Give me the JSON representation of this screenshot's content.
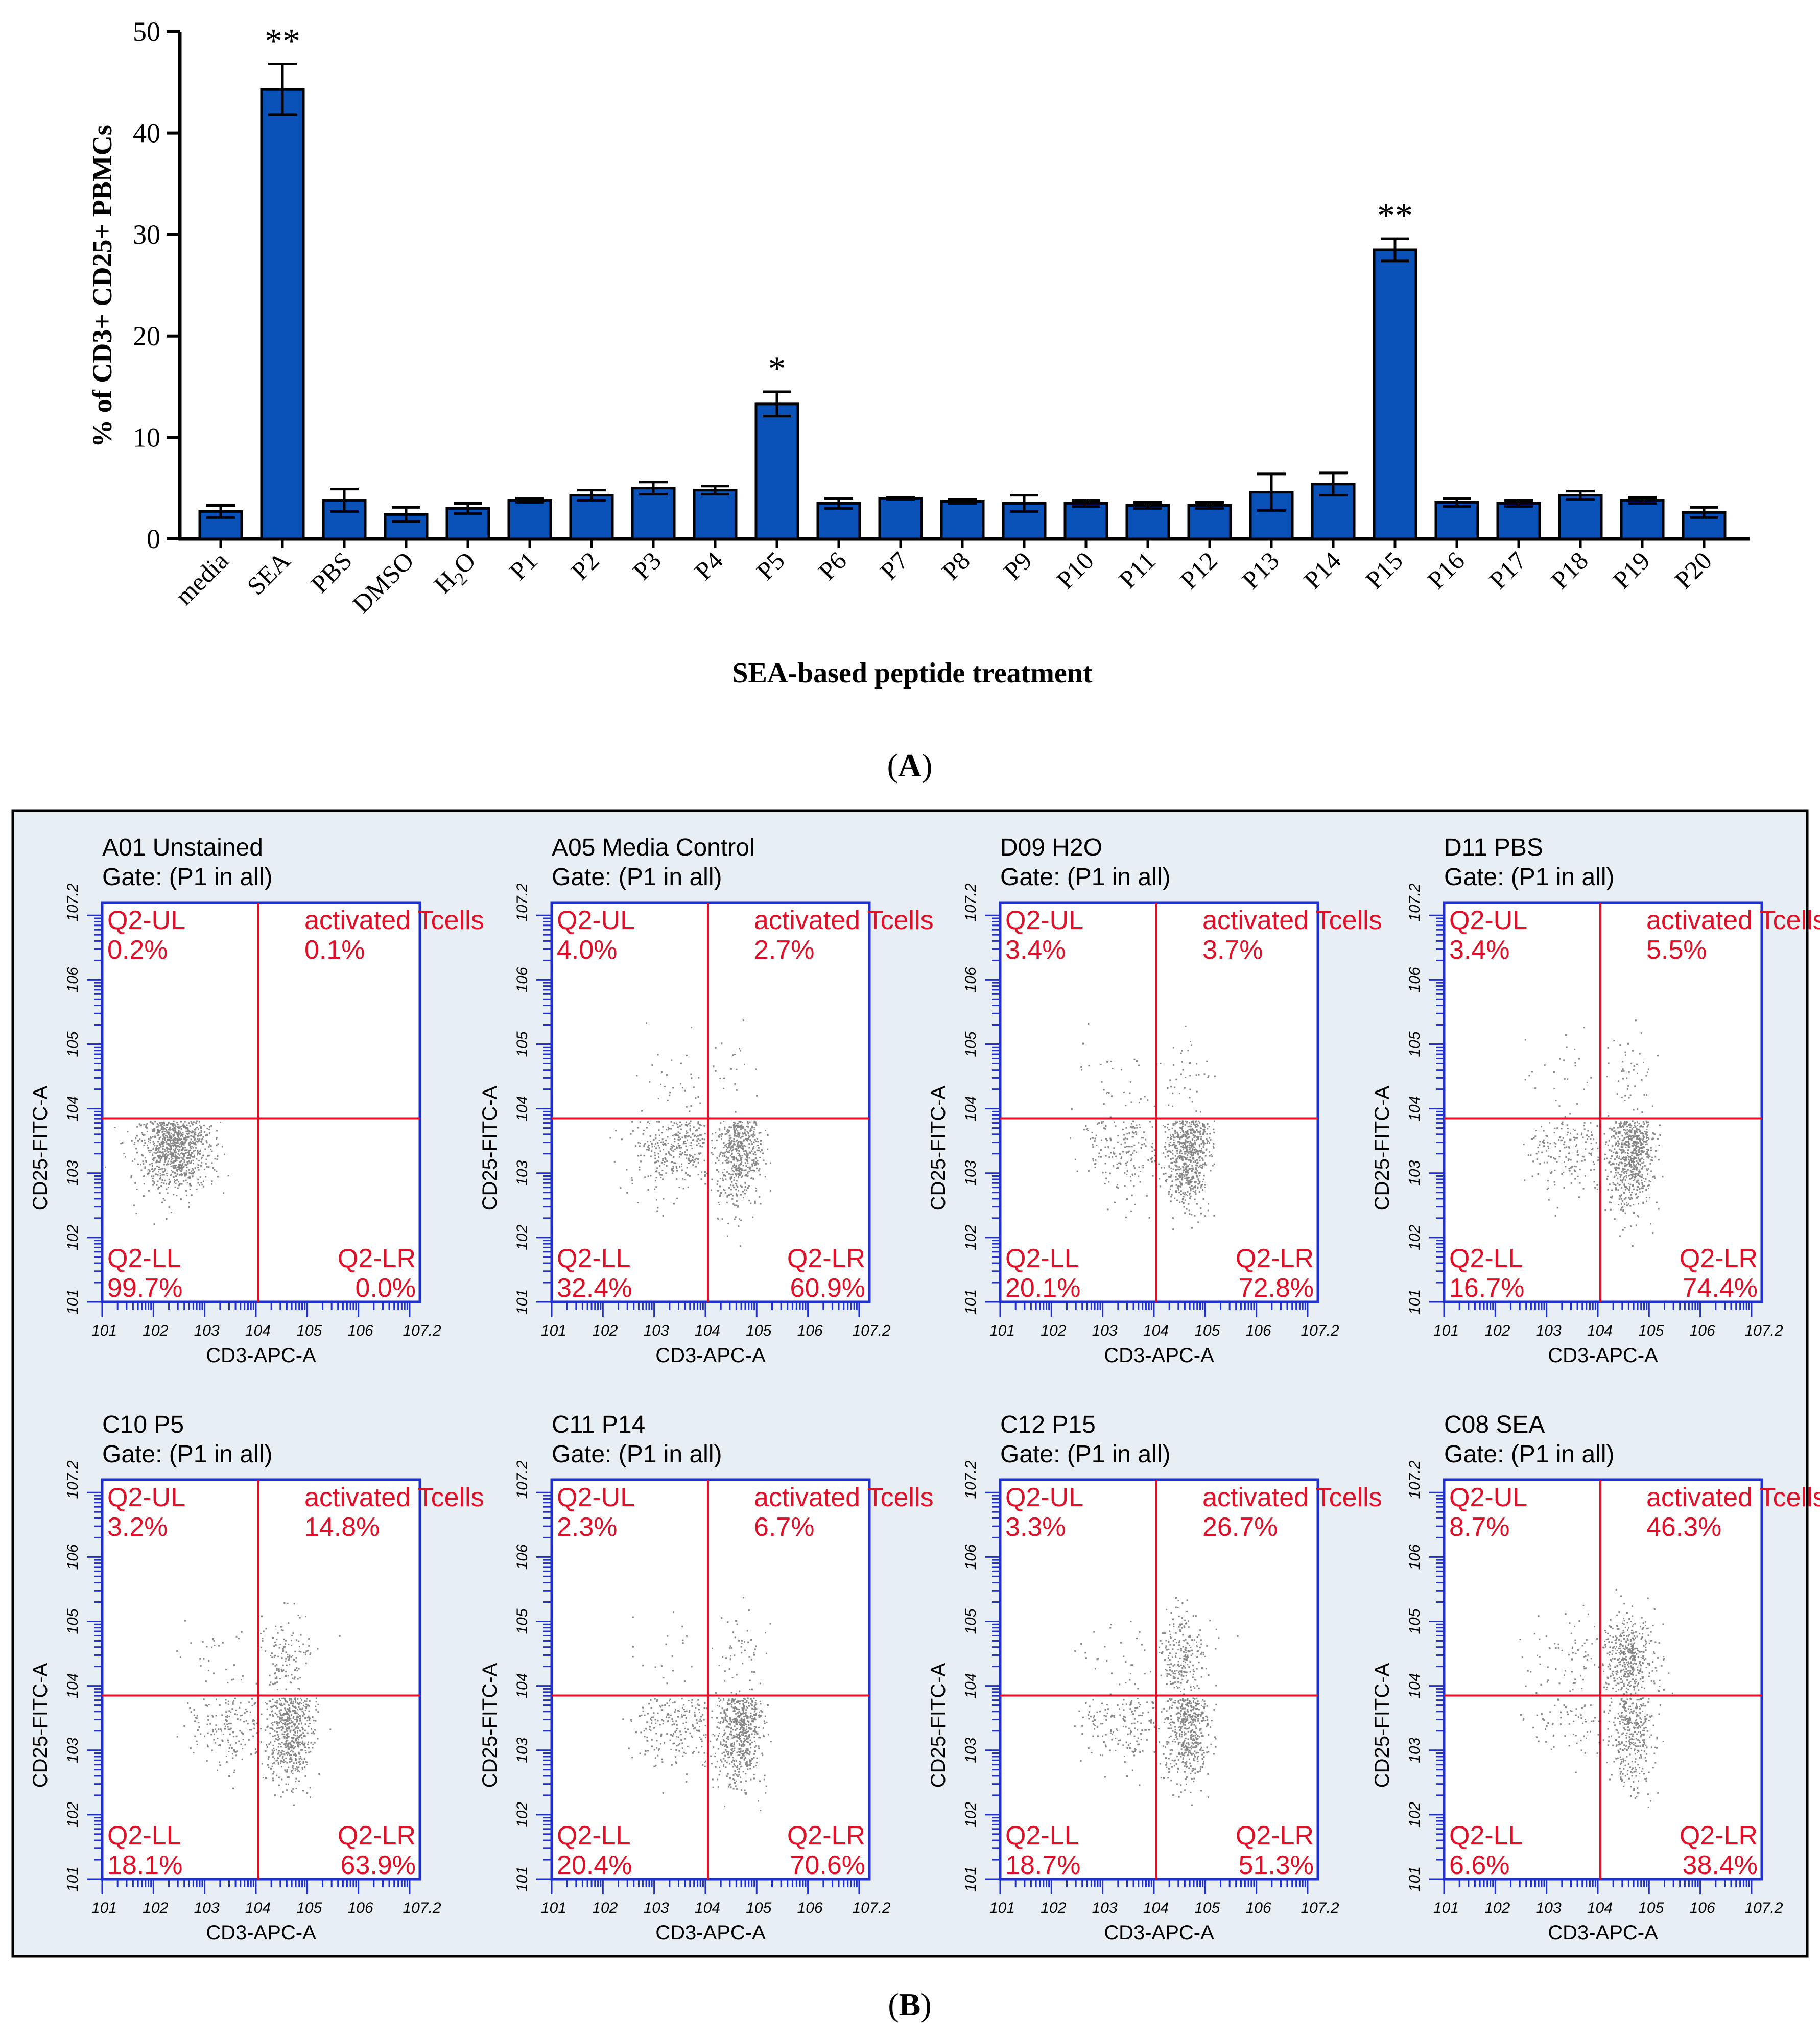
{
  "panel_a": {
    "label": "A",
    "chart_data": {
      "type": "bar",
      "title": "",
      "xlabel": "SEA-based peptide treatment",
      "ylabel": "% of CD3+ CD25+ PBMCs",
      "ylim": [
        0,
        50
      ],
      "yticks": [
        0,
        10,
        20,
        30,
        40,
        50
      ],
      "categories": [
        "media",
        "SEA",
        "PBS",
        "DMSO",
        "H2O",
        "P1",
        "P2",
        "P3",
        "P4",
        "P5",
        "P6",
        "P7",
        "P8",
        "P9",
        "P10",
        "P11",
        "P12",
        "P13",
        "P14",
        "P15",
        "P16",
        "P17",
        "P18",
        "P19",
        "P20"
      ],
      "values": [
        2.7,
        44.3,
        3.8,
        2.4,
        3.0,
        3.8,
        4.3,
        5.0,
        4.8,
        13.3,
        3.5,
        4.0,
        3.7,
        3.5,
        3.5,
        3.3,
        3.3,
        4.6,
        5.4,
        28.5,
        3.6,
        3.5,
        4.3,
        3.8,
        2.6
      ],
      "errors": [
        0.6,
        2.5,
        1.1,
        0.7,
        0.5,
        0.2,
        0.5,
        0.6,
        0.4,
        1.2,
        0.5,
        0.1,
        0.2,
        0.8,
        0.3,
        0.3,
        0.3,
        1.8,
        1.1,
        1.1,
        0.4,
        0.3,
        0.4,
        0.3,
        0.5
      ],
      "significance": [
        "",
        "**",
        "",
        "",
        "",
        "",
        "",
        "",
        "",
        "*",
        "",
        "",
        "",
        "",
        "",
        "",
        "",
        "",
        "",
        "**",
        "",
        "",
        "",
        "",
        ""
      ],
      "bar_color": "#0a52b8"
    }
  },
  "panel_b": {
    "label": "B",
    "x_axis_label": "CD3-APC-A",
    "y_axis_label": "CD25-FITC-A",
    "decade_labels": [
      "1",
      "2",
      "3",
      "4",
      "5",
      "6",
      "7.2"
    ],
    "quadrant_names": {
      "ul": "Q2-UL",
      "ur": "activated Tcells",
      "ll": "Q2-LL",
      "lr": "Q2-LR"
    },
    "colors": {
      "frame": "#1f2fd0",
      "gate": "#e01028",
      "text_red": "#e01028",
      "panel_bg": "#e8eff4"
    },
    "plots": [
      {
        "title": "A01 Unstained",
        "gate": "Gate: (P1 in all)",
        "ul": "0.2%",
        "ur": "0.1%",
        "ll": "99.7%",
        "lr": "0.0%"
      },
      {
        "title": "A05 Media Control",
        "gate": "Gate: (P1 in all)",
        "ul": "4.0%",
        "ur": "2.7%",
        "ll": "32.4%",
        "lr": "60.9%"
      },
      {
        "title": "D09 H2O",
        "gate": "Gate: (P1 in all)",
        "ul": "3.4%",
        "ur": "3.7%",
        "ll": "20.1%",
        "lr": "72.8%"
      },
      {
        "title": "D11 PBS",
        "gate": "Gate: (P1 in all)",
        "ul": "3.4%",
        "ur": "5.5%",
        "ll": "16.7%",
        "lr": "74.4%"
      },
      {
        "title": "C10 P5",
        "gate": "Gate: (P1 in all)",
        "ul": "3.2%",
        "ur": "14.8%",
        "ll": "18.1%",
        "lr": "63.9%"
      },
      {
        "title": "C11 P14",
        "gate": "Gate: (P1 in all)",
        "ul": "2.3%",
        "ur": "6.7%",
        "ll": "20.4%",
        "lr": "70.6%"
      },
      {
        "title": "C12 P15",
        "gate": "Gate: (P1 in all)",
        "ul": "3.3%",
        "ur": "26.7%",
        "ll": "18.7%",
        "lr": "51.3%"
      },
      {
        "title": "C08 SEA",
        "gate": "Gate: (P1 in all)",
        "ul": "8.7%",
        "ur": "46.3%",
        "ll": "6.6%",
        "lr": "38.4%"
      }
    ]
  }
}
